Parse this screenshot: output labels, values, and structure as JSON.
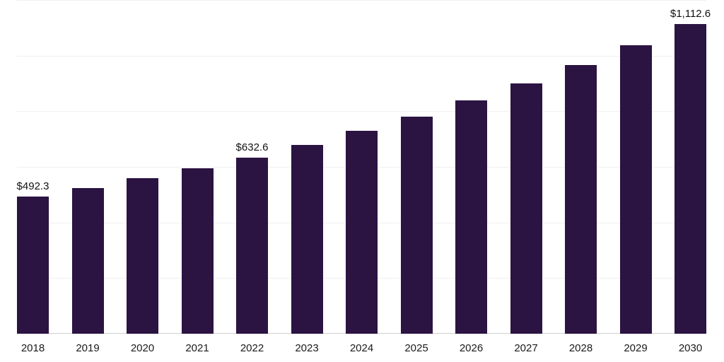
{
  "chart_data": {
    "type": "bar",
    "title": "",
    "xlabel": "",
    "ylabel": "",
    "categories": [
      "2018",
      "2019",
      "2020",
      "2021",
      "2022",
      "2023",
      "2024",
      "2025",
      "2026",
      "2027",
      "2028",
      "2029",
      "2030"
    ],
    "values": [
      492.3,
      524.2,
      558.1,
      594.2,
      632.6,
      678.8,
      728.5,
      781.7,
      838.9,
      900.2,
      966.0,
      1036.7,
      1112.6
    ],
    "labeled_points": [
      {
        "index": 0,
        "label": "$492.3"
      },
      {
        "index": 4,
        "label": "$632.6"
      },
      {
        "index": 12,
        "label": "$1,112.6"
      }
    ],
    "ylim": [
      0,
      1200
    ],
    "grid_interval": 200,
    "grid": "horizontal",
    "legend": "none",
    "bar_color": "#2b1342",
    "gridline_color": "#f0f0f0",
    "axis_color": "#cfcfcf"
  }
}
